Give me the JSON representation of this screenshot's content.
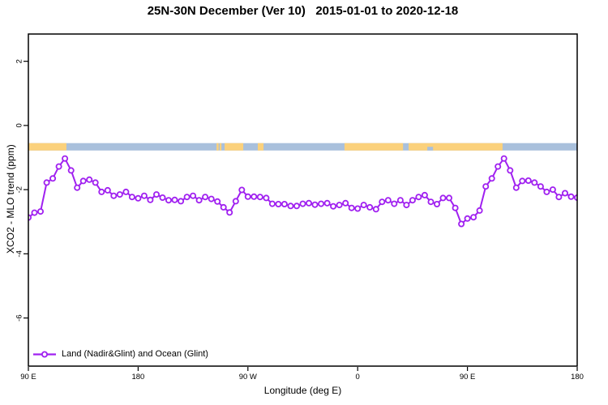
{
  "chart": {
    "title": "25N-30N December (Ver 10)   2015-01-01 to 2020-12-18",
    "xlabel": "Longitude (deg E)",
    "ylabel": "XCO2 - MLO trend (ppm)"
  },
  "legend": {
    "label": "Land (Nadir&Glint) and Ocean (Glint)"
  },
  "colors": {
    "line": "#A020F0",
    "marker_fill": "#ffffff",
    "land": "#FBD17C",
    "ocean": "#A9C0DC",
    "axis": "#000000"
  },
  "chart_data": {
    "type": "line",
    "title": "25N-30N December (Ver 10)   2015-01-01 to 2020-12-18",
    "xlabel": "Longitude (deg E)",
    "ylabel": "XCO2 - MLO trend (ppm)",
    "grid": false,
    "marker": "open-circle",
    "legend_position": "bottom-left",
    "xlim": [
      90,
      540
    ],
    "ylim": [
      -7.5,
      2.85
    ],
    "x_ticks": [
      {
        "pos": 90,
        "label": "90 E"
      },
      {
        "pos": 180,
        "label": "180"
      },
      {
        "pos": 270,
        "label": "90 W"
      },
      {
        "pos": 360,
        "label": "0"
      },
      {
        "pos": 450,
        "label": "90 E"
      },
      {
        "pos": 540,
        "label": "180"
      }
    ],
    "y_ticks": [
      {
        "pos": 2,
        "label": "2"
      },
      {
        "pos": 0,
        "label": "0"
      },
      {
        "pos": -2,
        "label": "-2"
      },
      {
        "pos": -4,
        "label": "-4"
      },
      {
        "pos": -6,
        "label": "-6"
      }
    ],
    "x": [
      90,
      95,
      100,
      105,
      110,
      115,
      120,
      125,
      130,
      135,
      140,
      145,
      150,
      155,
      160,
      165,
      170,
      175,
      180,
      185,
      190,
      195,
      200,
      205,
      210,
      215,
      220,
      225,
      230,
      235,
      240,
      245,
      250,
      255,
      260,
      265,
      270,
      275,
      280,
      285,
      290,
      295,
      300,
      305,
      310,
      315,
      320,
      325,
      330,
      335,
      340,
      345,
      350,
      355,
      360,
      365,
      370,
      375,
      380,
      385,
      390,
      395,
      400,
      405,
      410,
      415,
      420,
      425,
      430,
      435,
      440,
      445,
      450,
      455,
      460,
      465,
      470,
      475,
      480,
      485,
      490,
      495,
      500,
      505,
      510,
      515,
      520,
      525,
      530,
      535,
      540
    ],
    "series": [
      {
        "name": "Land (Nadir&Glint) and Ocean (Glint)",
        "values": [
          -2.87,
          -2.72,
          -2.68,
          -1.78,
          -1.65,
          -1.28,
          -1.03,
          -1.4,
          -1.94,
          -1.73,
          -1.69,
          -1.78,
          -2.07,
          -2.02,
          -2.19,
          -2.15,
          -2.07,
          -2.23,
          -2.27,
          -2.19,
          -2.32,
          -2.15,
          -2.25,
          -2.33,
          -2.32,
          -2.36,
          -2.23,
          -2.19,
          -2.33,
          -2.23,
          -2.29,
          -2.37,
          -2.55,
          -2.71,
          -2.36,
          -2.01,
          -2.22,
          -2.22,
          -2.23,
          -2.26,
          -2.44,
          -2.45,
          -2.45,
          -2.51,
          -2.51,
          -2.44,
          -2.42,
          -2.47,
          -2.44,
          -2.42,
          -2.52,
          -2.48,
          -2.42,
          -2.57,
          -2.59,
          -2.48,
          -2.55,
          -2.61,
          -2.38,
          -2.33,
          -2.44,
          -2.33,
          -2.48,
          -2.33,
          -2.23,
          -2.17,
          -2.38,
          -2.45,
          -2.26,
          -2.26,
          -2.57,
          -3.07,
          -2.9,
          -2.86,
          -2.65,
          -1.9,
          -1.65,
          -1.28,
          -1.03,
          -1.4,
          -1.94,
          -1.73,
          -1.72,
          -1.78,
          -1.9,
          -2.07,
          -2.0,
          -2.23,
          -2.11,
          -2.22,
          -2.25
        ]
      }
    ],
    "map_strip": {
      "value_top": -0.55,
      "value_bottom": -0.78,
      "ocean_extent": [
        90,
        540
      ],
      "land_segments": [
        [
          90,
          121.2
        ],
        [
          244.3,
          246.0
        ],
        [
          246.9,
          248.3
        ],
        [
          250.9,
          266.2
        ],
        [
          278.1,
          282.8
        ],
        [
          349.2,
          397.2
        ],
        [
          401.8,
          478.8
        ]
      ],
      "ocean_notches_bottom_half": [
        [
          417.1,
          421.8
        ]
      ]
    }
  }
}
